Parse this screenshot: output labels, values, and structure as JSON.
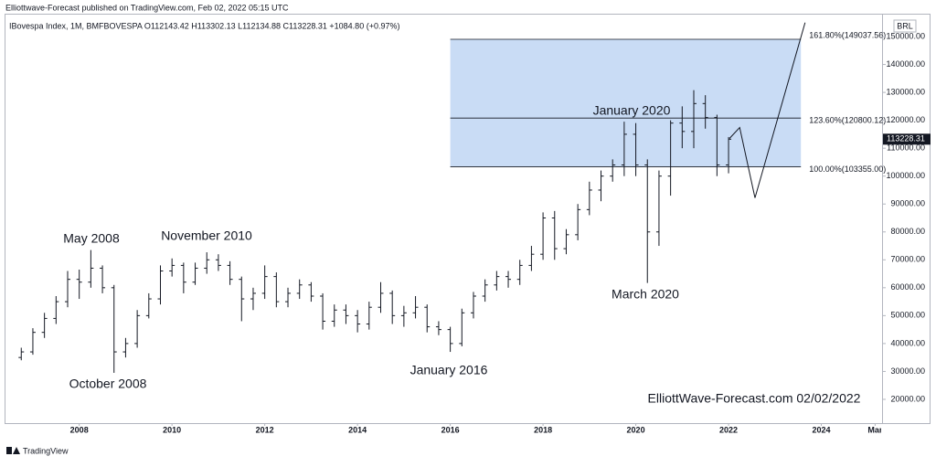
{
  "header": {
    "publisher": "Elliottwave-Forecast published on TradingView.com, Feb 02, 2022 05:15 UTC",
    "footer": "TradingView"
  },
  "chart_data": {
    "type": "ohlc",
    "legend": "IBovespa Index, 1M, BMFBOVESPA  O112143.42  H113302.13  L112134.88  C113228.31  +1084.80 (+0.97%)",
    "currency": "BRL",
    "color": "#131722",
    "x": [
      2006.75,
      2007,
      2007.25,
      2007.5,
      2007.75,
      2008,
      2008.25,
      2008.5,
      2008.75,
      2009,
      2009.25,
      2009.5,
      2009.75,
      2010,
      2010.25,
      2010.5,
      2010.75,
      2011,
      2011.25,
      2011.5,
      2011.75,
      2012,
      2012.25,
      2012.5,
      2012.75,
      2013,
      2013.25,
      2013.5,
      2013.75,
      2014,
      2014.25,
      2014.5,
      2014.75,
      2015,
      2015.25,
      2015.5,
      2015.75,
      2016,
      2016.25,
      2016.5,
      2016.75,
      2017,
      2017.25,
      2017.5,
      2017.75,
      2018,
      2018.25,
      2018.5,
      2018.75,
      2019,
      2019.25,
      2019.5,
      2019.75,
      2020,
      2020.25,
      2020.5,
      2020.75,
      2021,
      2021.25,
      2021.5,
      2021.75,
      2022
    ],
    "open": [
      35000,
      37000,
      44000,
      49000,
      55000,
      63000,
      62000,
      67000,
      60000,
      37000,
      40000,
      50000,
      56000,
      66000,
      68000,
      62000,
      67000,
      70000,
      68000,
      63000,
      56000,
      58000,
      64000,
      55000,
      58000,
      61000,
      57000,
      48000,
      52000,
      50000,
      47000,
      53000,
      58000,
      50000,
      51000,
      53000,
      46000,
      45000,
      40000,
      51000,
      57000,
      61000,
      64000,
      63000,
      68000,
      72000,
      85000,
      74000,
      79000,
      88000,
      95000,
      100000,
      104000,
      115000,
      104000,
      80000,
      100000,
      119000,
      116000,
      126000,
      121000,
      104000
    ],
    "high": [
      38500,
      45500,
      51000,
      57000,
      66000,
      66500,
      73500,
      68000,
      61000,
      42000,
      52000,
      58000,
      68000,
      70500,
      69000,
      69000,
      72700,
      72000,
      69500,
      64000,
      60000,
      68000,
      65500,
      60000,
      63000,
      62000,
      58000,
      54000,
      54000,
      52000,
      55000,
      62000,
      59000,
      53500,
      57000,
      54000,
      48000,
      46000,
      52500,
      58500,
      63000,
      66000,
      66000,
      70000,
      75000,
      87000,
      87500,
      81000,
      90000,
      98000,
      102000,
      106000,
      119500,
      119000,
      106000,
      102000,
      120000,
      125000,
      130800,
      129000,
      122000,
      114000
    ],
    "low": [
      34000,
      36000,
      42000,
      47000,
      53000,
      56000,
      60000,
      58000,
      29500,
      35000,
      38500,
      49000,
      54000,
      64000,
      58000,
      61000,
      65000,
      66000,
      61000,
      48000,
      52000,
      56000,
      53000,
      53000,
      56000,
      55000,
      45000,
      46000,
      47000,
      44000,
      45000,
      51000,
      47000,
      46000,
      49000,
      44000,
      43000,
      37000,
      39000,
      49000,
      55000,
      59000,
      60000,
      61000,
      66000,
      70000,
      70000,
      72000,
      77000,
      86000,
      91000,
      98000,
      100000,
      100000,
      61700,
      75000,
      93000,
      110000,
      110000,
      117000,
      100000,
      101000
    ],
    "close": [
      37000,
      44000,
      49000,
      55000,
      63000,
      62000,
      67000,
      60000,
      37000,
      40000,
      50000,
      56000,
      66000,
      68000,
      62000,
      67000,
      70000,
      68000,
      63000,
      56000,
      58000,
      64000,
      55000,
      58000,
      61000,
      57000,
      48000,
      52000,
      50000,
      47000,
      53000,
      58000,
      50000,
      51000,
      53000,
      46000,
      45000,
      40000,
      51000,
      57000,
      61000,
      64000,
      63000,
      68000,
      72000,
      85000,
      74000,
      79000,
      88000,
      95000,
      100000,
      104000,
      115000,
      104000,
      80000,
      100000,
      119000,
      116000,
      126000,
      121000,
      104000,
      113228.31
    ],
    "last_price": 113228.31,
    "xlim": [
      2006.39,
      2025.31
    ],
    "xticks": [
      2008,
      2010,
      2012,
      2014,
      2016,
      2018,
      2020,
      2022,
      2024,
      {
        "value": 2025.16,
        "label": "Mar"
      }
    ],
    "ylim": [
      11800,
      158200
    ],
    "yticks": [
      {
        "value": 20000,
        "label": "20000.00"
      },
      {
        "value": 30000,
        "label": "30000.00"
      },
      {
        "value": 40000,
        "label": "40000.00"
      },
      {
        "value": 50000,
        "label": "50000.00"
      },
      {
        "value": 60000,
        "label": "60000.00"
      },
      {
        "value": 70000,
        "label": "70000.00"
      },
      {
        "value": 80000,
        "label": "80000.00"
      },
      {
        "value": 90000,
        "label": "90000.00"
      },
      {
        "value": 100000,
        "label": "100000.00"
      },
      {
        "value": 110000,
        "label": "110000.00"
      },
      {
        "value": 120000,
        "label": "120000.00"
      },
      {
        "value": 130000,
        "label": "130000.00"
      },
      {
        "value": 140000,
        "label": "140000.00"
      },
      {
        "value": 150000,
        "label": "150000.00"
      }
    ],
    "fib": {
      "x": [
        2016.0,
        2023.56
      ],
      "fill": "#c9dcf5",
      "levels": [
        {
          "value": 149037.56,
          "label": "161.80%(149037.56)"
        },
        {
          "value": 120800.12,
          "label": "123.60%(120800.12)"
        },
        {
          "value": 103355.0,
          "label": "100.00%(103355.00)"
        }
      ]
    },
    "projection": {
      "x": [
        2022.02,
        2022.24,
        2022.57,
        2023.65
      ],
      "y": [
        113500,
        117400,
        92200,
        155000
      ]
    },
    "annotations": [
      "May 2008",
      "November 2010",
      "October 2008",
      "January 2016",
      "January 2020",
      "March 2020",
      "ElliottWave-Forecast.com 02/02/2022"
    ]
  }
}
